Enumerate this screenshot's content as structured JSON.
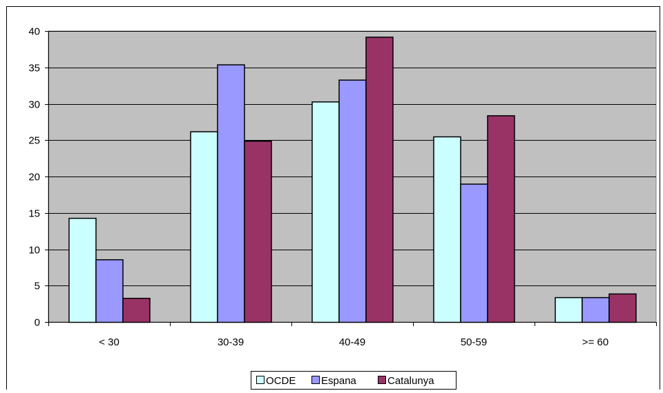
{
  "chart_data": {
    "type": "bar",
    "categories": [
      "< 30",
      "30-39",
      "40-49",
      "50-59",
      ">= 60"
    ],
    "series": [
      {
        "name": "OCDE",
        "color": "#ccffff",
        "values": [
          14.3,
          26.2,
          30.3,
          25.5,
          3.4
        ]
      },
      {
        "name": "Espana",
        "color": "#9999ff",
        "values": [
          8.6,
          35.4,
          33.3,
          19.0,
          3.4
        ]
      },
      {
        "name": "Catalunya",
        "color": "#993366",
        "values": [
          3.3,
          24.9,
          39.2,
          28.4,
          3.9
        ]
      }
    ],
    "ylim": [
      0,
      40
    ],
    "yticks": [
      0,
      5,
      10,
      15,
      20,
      25,
      30,
      35,
      40
    ],
    "grid": true,
    "plot_background": "#c0c0c0",
    "legend_position": "bottom"
  }
}
